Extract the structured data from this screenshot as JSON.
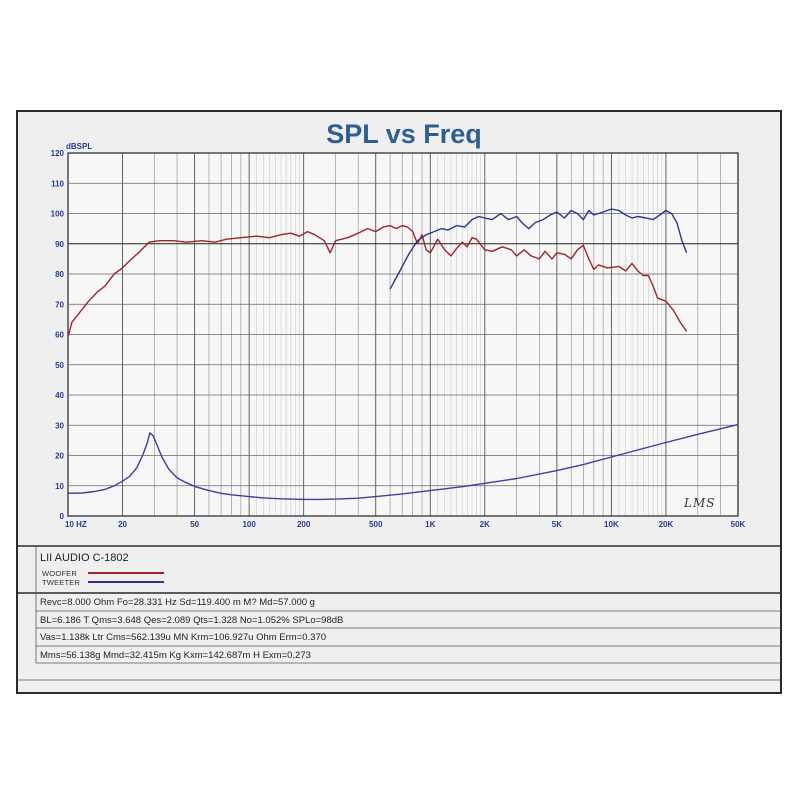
{
  "chart_data": {
    "type": "line",
    "title": "SPL vs Freq",
    "ylabel": "dBSPL",
    "xscale": "log",
    "xlim": [
      10,
      50000
    ],
    "ylim": [
      0,
      120
    ],
    "yticks": [
      0,
      10,
      20,
      30,
      40,
      50,
      60,
      70,
      80,
      90,
      100,
      110,
      120
    ],
    "xtick_labels": [
      {
        "value": 10,
        "label": "10  HZ"
      },
      {
        "value": 20,
        "label": "20"
      },
      {
        "value": 50,
        "label": "50"
      },
      {
        "value": 100,
        "label": "100"
      },
      {
        "value": 200,
        "label": "200"
      },
      {
        "value": 500,
        "label": "500"
      },
      {
        "value": 1000,
        "label": "1K"
      },
      {
        "value": 2000,
        "label": "2K"
      },
      {
        "value": 5000,
        "label": "5K"
      },
      {
        "value": 10000,
        "label": "10K"
      },
      {
        "value": 20000,
        "label": "20K"
      },
      {
        "value": 50000,
        "label": "50K"
      }
    ],
    "grid": true,
    "series": [
      {
        "name": "WOOFER",
        "color": "#a0232b",
        "points": [
          [
            10,
            59
          ],
          [
            10.5,
            64
          ],
          [
            11.5,
            67
          ],
          [
            13,
            71
          ],
          [
            14.5,
            74
          ],
          [
            16,
            76
          ],
          [
            18,
            80
          ],
          [
            20,
            82
          ],
          [
            22,
            84.5
          ],
          [
            25,
            87.5
          ],
          [
            28,
            90.5
          ],
          [
            32,
            91
          ],
          [
            38,
            91
          ],
          [
            45,
            90.5
          ],
          [
            55,
            91
          ],
          [
            65,
            90.5
          ],
          [
            75,
            91.5
          ],
          [
            90,
            92
          ],
          [
            110,
            92.5
          ],
          [
            130,
            92
          ],
          [
            150,
            93
          ],
          [
            170,
            93.5
          ],
          [
            190,
            92.5
          ],
          [
            210,
            94
          ],
          [
            230,
            93
          ],
          [
            260,
            91
          ],
          [
            280,
            87
          ],
          [
            300,
            91
          ],
          [
            350,
            92
          ],
          [
            400,
            93.5
          ],
          [
            450,
            95
          ],
          [
            500,
            94
          ],
          [
            550,
            95.5
          ],
          [
            600,
            96
          ],
          [
            650,
            95
          ],
          [
            700,
            96
          ],
          [
            750,
            95.5
          ],
          [
            800,
            94
          ],
          [
            850,
            90
          ],
          [
            900,
            93
          ],
          [
            950,
            88
          ],
          [
            1000,
            87
          ],
          [
            1100,
            91.5
          ],
          [
            1200,
            88
          ],
          [
            1300,
            86
          ],
          [
            1400,
            88.5
          ],
          [
            1500,
            90.5
          ],
          [
            1600,
            89
          ],
          [
            1700,
            92
          ],
          [
            1800,
            91.5
          ],
          [
            2000,
            88
          ],
          [
            2200,
            87.5
          ],
          [
            2500,
            89
          ],
          [
            2800,
            88
          ],
          [
            3000,
            86
          ],
          [
            3300,
            88
          ],
          [
            3600,
            86
          ],
          [
            4000,
            85
          ],
          [
            4300,
            87.5
          ],
          [
            4700,
            85
          ],
          [
            5000,
            87
          ],
          [
            5500,
            86.5
          ],
          [
            6000,
            85
          ],
          [
            6500,
            88
          ],
          [
            7000,
            89.5
          ],
          [
            7500,
            85
          ],
          [
            8000,
            81.5
          ],
          [
            8500,
            83
          ],
          [
            9500,
            82
          ],
          [
            11000,
            82.5
          ],
          [
            12000,
            81
          ],
          [
            13000,
            83.5
          ],
          [
            14000,
            81
          ],
          [
            15000,
            79.5
          ],
          [
            16000,
            79.5
          ],
          [
            17000,
            76
          ],
          [
            18000,
            72
          ],
          [
            20000,
            71
          ],
          [
            22000,
            68
          ],
          [
            24000,
            64
          ],
          [
            26000,
            61
          ]
        ]
      },
      {
        "name": "TWEETER",
        "color": "#2b3595",
        "points": [
          [
            600,
            75
          ],
          [
            680,
            81
          ],
          [
            760,
            86.5
          ],
          [
            850,
            91
          ],
          [
            950,
            93
          ],
          [
            1050,
            94
          ],
          [
            1150,
            95
          ],
          [
            1250,
            94.5
          ],
          [
            1400,
            96
          ],
          [
            1550,
            95.5
          ],
          [
            1700,
            98
          ],
          [
            1850,
            99
          ],
          [
            2000,
            98.5
          ],
          [
            2200,
            98
          ],
          [
            2450,
            100
          ],
          [
            2700,
            98
          ],
          [
            3000,
            99
          ],
          [
            3200,
            97
          ],
          [
            3500,
            95
          ],
          [
            3800,
            97
          ],
          [
            4200,
            98
          ],
          [
            4600,
            99.5
          ],
          [
            5000,
            100.5
          ],
          [
            5500,
            98.5
          ],
          [
            6000,
            101
          ],
          [
            6500,
            100
          ],
          [
            7000,
            98
          ],
          [
            7500,
            101
          ],
          [
            8000,
            99.5
          ],
          [
            9000,
            100.5
          ],
          [
            10000,
            101.5
          ],
          [
            11000,
            101
          ],
          [
            12000,
            99.5
          ],
          [
            13000,
            98.5
          ],
          [
            14000,
            99
          ],
          [
            15500,
            98.5
          ],
          [
            17000,
            98
          ],
          [
            18500,
            99.5
          ],
          [
            20000,
            101
          ],
          [
            21500,
            100
          ],
          [
            23000,
            97
          ],
          [
            24500,
            91
          ],
          [
            26000,
            87
          ]
        ]
      },
      {
        "name": "impedance",
        "color": "#3d3f9e",
        "points": [
          [
            10,
            7.5
          ],
          [
            12,
            7.6
          ],
          [
            14,
            8.1
          ],
          [
            16,
            8.8
          ],
          [
            18,
            10
          ],
          [
            20,
            11.5
          ],
          [
            22,
            13.2
          ],
          [
            24,
            16
          ],
          [
            26,
            20.5
          ],
          [
            27.5,
            24.5
          ],
          [
            28.3,
            27.5
          ],
          [
            29.5,
            26.5
          ],
          [
            31,
            23.5
          ],
          [
            33,
            19.5
          ],
          [
            36,
            15.5
          ],
          [
            40,
            12.6
          ],
          [
            45,
            11
          ],
          [
            50,
            9.8
          ],
          [
            60,
            8.4
          ],
          [
            70,
            7.5
          ],
          [
            80,
            7
          ],
          [
            100,
            6.4
          ],
          [
            120,
            6
          ],
          [
            150,
            5.7
          ],
          [
            200,
            5.5
          ],
          [
            250,
            5.5
          ],
          [
            300,
            5.6
          ],
          [
            400,
            5.9
          ],
          [
            500,
            6.4
          ],
          [
            700,
            7.3
          ],
          [
            1000,
            8.4
          ],
          [
            1500,
            9.7
          ],
          [
            2000,
            10.8
          ],
          [
            3000,
            12.4
          ],
          [
            5000,
            15
          ],
          [
            7000,
            17
          ],
          [
            10000,
            19.5
          ],
          [
            15000,
            22.3
          ],
          [
            20000,
            24.3
          ],
          [
            30000,
            27
          ],
          [
            50000,
            30.2
          ]
        ]
      }
    ]
  },
  "legend": {
    "title": "LII AUDIO C-1802",
    "items": [
      {
        "label": "WOOFER",
        "color": "#a0232b"
      },
      {
        "label": "TWEETER",
        "color": "#2b3595"
      }
    ]
  },
  "params": [
    "Revc=8.000 Ohm  Fo=28.331 Hz  Sd=119.400 m  M?  Md=57.000 g",
    "BL=6.186 T  Qms=3.648  Qes=2.089  Qts=1.328  No=1.052%  SPLo=98dB",
    "Vas=1.138k Ltr  Cms=562.139u MN Krm=106.927u Ohm Erm=0.370",
    "Mms=56.138g  Mmd=32.415m Kg  Kxm=142.687m H  Exm=0.273"
  ],
  "signature": "LMS"
}
